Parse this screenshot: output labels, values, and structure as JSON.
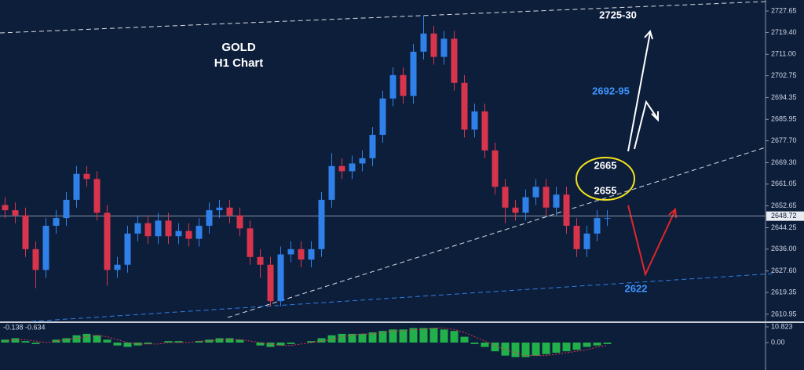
{
  "chart_data": [
    {
      "type": "candlestick",
      "title": "GOLD",
      "subtitle": "H1 Chart",
      "open": [
        2653,
        2651,
        2649,
        2636,
        2628,
        2645,
        2648,
        2655,
        2665,
        2663,
        2650,
        2628,
        2630,
        2642,
        2646,
        2641,
        2647,
        2641,
        2643,
        2640,
        2645,
        2651,
        2652,
        2649,
        2644,
        2633,
        2630,
        2616,
        2634,
        2636,
        2632,
        2636,
        2655,
        2668,
        2666,
        2669,
        2671,
        2680,
        2694,
        2703,
        2695,
        2712,
        2719,
        2710,
        2717,
        2700,
        2682,
        2689,
        2674,
        2660,
        2652,
        2650,
        2656,
        2660,
        2652,
        2657,
        2645,
        2636,
        2642,
        2648
      ],
      "high": [
        2656,
        2654,
        2652,
        2639,
        2648,
        2651,
        2658,
        2668,
        2668,
        2666,
        2653,
        2633,
        2645,
        2649,
        2649,
        2650,
        2650,
        2646,
        2646,
        2648,
        2654,
        2655,
        2655,
        2652,
        2647,
        2636,
        2633,
        2637,
        2639,
        2639,
        2639,
        2658,
        2673,
        2671,
        2672,
        2674,
        2683,
        2697,
        2706,
        2706,
        2715,
        2726,
        2722,
        2720,
        2720,
        2703,
        2692,
        2692,
        2677,
        2663,
        2655,
        2659,
        2663,
        2663,
        2660,
        2660,
        2648,
        2645,
        2651,
        2651
      ],
      "low": [
        2648,
        2646,
        2633,
        2621,
        2625,
        2642,
        2645,
        2652,
        2660,
        2647,
        2622,
        2625,
        2627,
        2639,
        2638,
        2638,
        2638,
        2638,
        2637,
        2637,
        2642,
        2648,
        2646,
        2641,
        2630,
        2625,
        2614,
        2614,
        2631,
        2629,
        2629,
        2633,
        2652,
        2663,
        2663,
        2666,
        2668,
        2677,
        2691,
        2692,
        2692,
        2709,
        2707,
        2707,
        2697,
        2679,
        2679,
        2671,
        2657,
        2646,
        2647,
        2647,
        2653,
        2649,
        2649,
        2642,
        2633,
        2633,
        2639,
        2645
      ],
      "close": [
        2651,
        2649,
        2636,
        2628,
        2645,
        2648,
        2655,
        2665,
        2663,
        2650,
        2628,
        2630,
        2642,
        2646,
        2641,
        2647,
        2641,
        2643,
        2640,
        2645,
        2651,
        2652,
        2649,
        2644,
        2633,
        2630,
        2616,
        2634,
        2636,
        2632,
        2636,
        2655,
        2668,
        2666,
        2669,
        2671,
        2680,
        2694,
        2703,
        2695,
        2712,
        2719,
        2710,
        2717,
        2700,
        2682,
        2689,
        2674,
        2660,
        2652,
        2650,
        2656,
        2660,
        2652,
        2657,
        2645,
        2636,
        2642,
        2648,
        2648
      ],
      "up_color": "#2f80e8",
      "down_color": "#d8344c",
      "current_price": 2648.72,
      "annotations": [
        "2725-30",
        "2692-95",
        "2665",
        "2655",
        "2622"
      ],
      "ylim": [
        2608.2,
        2731.9
      ],
      "yticks": [
        2610.95,
        2619.35,
        {
          "value": 2627.6,
          "label": "2627.60"
        },
        {
          "value": 2636,
          "label": "2636.00"
        },
        2644.25,
        2652.65,
        2661.05,
        {
          "value": 2669.3,
          "label": "2669.30"
        },
        {
          "value": 2677.7,
          "label": "2677.70"
        },
        2685.95,
        2694.35,
        2702.75,
        {
          "value": 2711,
          "label": "2711.00"
        },
        {
          "value": 2719.4,
          "label": "2719.40"
        },
        2727.65
      ]
    },
    {
      "type": "bar",
      "title": "-0.138 -0.634",
      "values": [
        2,
        3,
        1,
        -1,
        0,
        2,
        3,
        5,
        6,
        5,
        2,
        -2,
        -3,
        -2,
        -1,
        0,
        1,
        1,
        0,
        1,
        2,
        3,
        3,
        2,
        0,
        -2,
        -3,
        -2,
        -1,
        0,
        1,
        3,
        5,
        6,
        6,
        6,
        7,
        8,
        9,
        9,
        10,
        10,
        10,
        9,
        8,
        4,
        -1,
        -3,
        -6,
        -9,
        -10,
        -10,
        -9,
        -8,
        -7,
        -6,
        -5,
        -3,
        -2,
        -1
      ],
      "signal": [
        1,
        2,
        2,
        1,
        0,
        1,
        2,
        3,
        4,
        5,
        4,
        2,
        0,
        -1,
        -1,
        -1,
        0,
        0,
        0,
        1,
        1,
        2,
        2,
        2,
        1,
        0,
        -1,
        -2,
        -2,
        -1,
        0,
        1,
        2,
        4,
        5,
        6,
        6,
        7,
        8,
        8,
        9,
        9,
        10,
        10,
        9,
        7,
        4,
        1,
        -2,
        -5,
        -7,
        -9,
        -9,
        -9,
        -8,
        -7,
        -6,
        -5,
        -3,
        -2
      ],
      "color": "#22b04a",
      "signal_color": "#d8344c",
      "ylim": [
        -18.9,
        13.5
      ],
      "yticks": [
        10.823,
        {
          "value": 0,
          "label": "0.00"
        }
      ]
    }
  ]
}
